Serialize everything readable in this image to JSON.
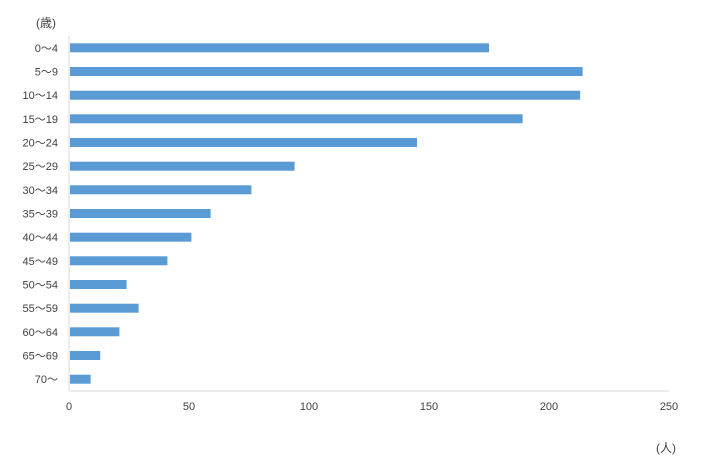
{
  "chart_data": {
    "type": "bar",
    "orientation": "horizontal",
    "title": "",
    "ylabel": "(歳)",
    "xlabel": "(人)",
    "categories": [
      "0～4",
      "5～9",
      "10～14",
      "15～19",
      "20～24",
      "25～29",
      "30～34",
      "35～39",
      "40～44",
      "45～49",
      "50～54",
      "55～59",
      "60～64",
      "65～69",
      "70～"
    ],
    "values": [
      175,
      214,
      213,
      189,
      145,
      94,
      76,
      59,
      51,
      41,
      24,
      29,
      21,
      13,
      9
    ],
    "xlim": [
      0,
      250
    ],
    "xticks": [
      0,
      50,
      100,
      150,
      200,
      250
    ],
    "grid": false,
    "legend": "none",
    "bar_color": "#5B9BD5",
    "axis_color": "#D9D9D9"
  }
}
